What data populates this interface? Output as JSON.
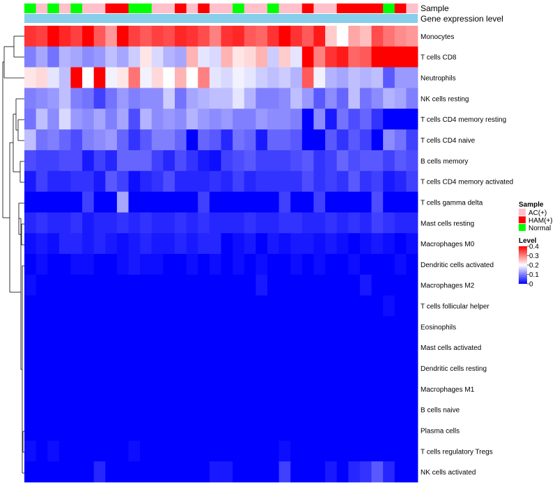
{
  "chart_data": {
    "type": "heatmap",
    "title": "",
    "annotation_tracks": [
      "Sample",
      "Gene expression level"
    ],
    "sample_groups": [
      "N",
      "A",
      "N",
      "A",
      "N",
      "A",
      "A",
      "H",
      "H",
      "N",
      "N",
      "A",
      "A",
      "H",
      "A",
      "H",
      "A",
      "A",
      "N",
      "A",
      "A",
      "N",
      "A",
      "A",
      "H",
      "A",
      "A",
      "H",
      "H",
      "H",
      "H",
      "N",
      "H",
      "A"
    ],
    "row_labels": [
      "Monocytes",
      "T cells CD8",
      "Neutrophils",
      "NK cells resting",
      "T cells CD4 memory resting",
      "T cells CD4 naive",
      "B cells memory",
      "T cells CD4 memory activated",
      "T cells gamma delta",
      "Mast cells resting",
      "Macrophages M0",
      "Dendritic cells activated",
      "Macrophages M2",
      "T cells follicular helper",
      "Eosinophils",
      "Mast cells activated",
      "Dendritic cells resting",
      "Macrophages M1",
      "B cells naive",
      "Plasma cells",
      "T cells regulatory  Tregs",
      "NK cells activated"
    ],
    "values": [
      [
        0.36,
        0.35,
        0.4,
        0.37,
        0.35,
        0.42,
        0.33,
        0.28,
        0.42,
        0.35,
        0.33,
        0.35,
        0.34,
        0.37,
        0.36,
        0.34,
        0.3,
        0.36,
        0.37,
        0.33,
        0.32,
        0.36,
        0.42,
        0.36,
        0.33,
        0.38,
        0.24,
        0.2,
        0.27,
        0.25,
        0.34,
        0.31,
        0.29,
        0.28
      ],
      [
        0.1,
        0.13,
        0.09,
        0.14,
        0.13,
        0.11,
        0.12,
        0.15,
        0.13,
        0.16,
        0.22,
        0.17,
        0.14,
        0.13,
        0.26,
        0.18,
        0.17,
        0.26,
        0.22,
        0.23,
        0.26,
        0.16,
        0.24,
        0.18,
        0.42,
        0.3,
        0.36,
        0.38,
        0.32,
        0.33,
        0.42,
        0.42,
        0.42,
        0.42
      ],
      [
        0.22,
        0.23,
        0.18,
        0.15,
        0.42,
        0.2,
        0.4,
        0.19,
        0.22,
        0.31,
        0.19,
        0.23,
        0.2,
        0.26,
        0.2,
        0.3,
        0.18,
        0.17,
        0.19,
        0.18,
        0.16,
        0.15,
        0.16,
        0.14,
        0.33,
        0.19,
        0.14,
        0.13,
        0.15,
        0.14,
        0.15,
        0.07,
        0.12,
        0.12
      ],
      [
        0.1,
        0.11,
        0.12,
        0.15,
        0.1,
        0.09,
        0.05,
        0.09,
        0.12,
        0.1,
        0.11,
        0.11,
        0.16,
        0.09,
        0.13,
        0.14,
        0.15,
        0.15,
        0.18,
        0.14,
        0.1,
        0.1,
        0.11,
        0.15,
        0.12,
        0.07,
        0.11,
        0.08,
        0.15,
        0.09,
        0.11,
        0.14,
        0.13,
        0.1
      ],
      [
        0.09,
        0.15,
        0.11,
        0.17,
        0.12,
        0.11,
        0.13,
        0.1,
        0.13,
        0.06,
        0.14,
        0.11,
        0.12,
        0.11,
        0.14,
        0.12,
        0.11,
        0.12,
        0.1,
        0.1,
        0.12,
        0.11,
        0.11,
        0.1,
        0.0,
        0.11,
        0.02,
        0.09,
        0.06,
        0.08,
        0.04,
        0.0,
        0.0,
        0.0
      ],
      [
        0.15,
        0.09,
        0.1,
        0.08,
        0.06,
        0.1,
        0.11,
        0.12,
        0.08,
        0.04,
        0.07,
        0.1,
        0.1,
        0.08,
        0.0,
        0.08,
        0.07,
        0.03,
        0.09,
        0.08,
        0.02,
        0.08,
        0.08,
        0.07,
        0.0,
        0.0,
        0.07,
        0.04,
        0.07,
        0.05,
        0.0,
        0.11,
        0.09,
        0.05
      ],
      [
        0.06,
        0.05,
        0.05,
        0.06,
        0.06,
        0.02,
        0.05,
        0.03,
        0.08,
        0.08,
        0.08,
        0.05,
        0.03,
        0.06,
        0.04,
        0.02,
        0.01,
        0.05,
        0.06,
        0.07,
        0.05,
        0.05,
        0.05,
        0.06,
        0.07,
        0.04,
        0.05,
        0.08,
        0.06,
        0.07,
        0.07,
        0.05,
        0.07,
        0.06
      ],
      [
        0.02,
        0.05,
        0.03,
        0.03,
        0.04,
        0.04,
        0.02,
        0.07,
        0.05,
        0.01,
        0.03,
        0.04,
        0.06,
        0.03,
        0.03,
        0.03,
        0.04,
        0.03,
        0.05,
        0.03,
        0.04,
        0.04,
        0.04,
        0.04,
        0.06,
        0.04,
        0.05,
        0.04,
        0.07,
        0.04,
        0.05,
        0.02,
        0.03,
        0.05
      ],
      [
        0.0,
        0.0,
        0.0,
        0.0,
        0.0,
        0.05,
        0.0,
        0.0,
        0.13,
        0.0,
        0.0,
        0.0,
        0.0,
        0.0,
        0.0,
        0.05,
        0.0,
        0.0,
        0.0,
        0.0,
        0.0,
        0.0,
        0.05,
        0.0,
        0.0,
        0.05,
        0.0,
        0.0,
        0.0,
        0.0,
        0.06,
        0.0,
        0.0,
        0.0
      ],
      [
        0.03,
        0.04,
        0.03,
        0.03,
        0.04,
        0.02,
        0.03,
        0.03,
        0.04,
        0.03,
        0.04,
        0.03,
        0.03,
        0.04,
        0.03,
        0.04,
        0.03,
        0.03,
        0.03,
        0.04,
        0.03,
        0.03,
        0.04,
        0.04,
        0.03,
        0.03,
        0.04,
        0.03,
        0.04,
        0.03,
        0.05,
        0.04,
        0.03,
        0.03
      ],
      [
        0.01,
        0.02,
        0.01,
        0.03,
        0.03,
        0.02,
        0.03,
        0.02,
        0.01,
        0.02,
        0.03,
        0.02,
        0.02,
        0.03,
        0.02,
        0.03,
        0.03,
        0.0,
        0.01,
        0.02,
        0.0,
        0.02,
        0.01,
        0.02,
        0.02,
        0.01,
        0.02,
        0.01,
        0.0,
        0.01,
        0.02,
        0.01,
        0.0,
        0.01
      ],
      [
        0.0,
        0.01,
        0.0,
        0.0,
        0.01,
        0.01,
        0.0,
        0.0,
        0.01,
        0.02,
        0.01,
        0.01,
        0.0,
        0.0,
        0.01,
        0.0,
        0.01,
        0.0,
        0.01,
        0.0,
        0.01,
        0.0,
        0.0,
        0.01,
        0.0,
        0.01,
        0.0,
        0.0,
        0.01,
        0.0,
        0.0,
        0.0,
        0.01,
        0.0
      ],
      [
        0.01,
        0.0,
        0.0,
        0.0,
        0.0,
        0.0,
        0.0,
        0.0,
        0.0,
        0.0,
        0.0,
        0.0,
        0.0,
        0.0,
        0.0,
        0.0,
        0.0,
        0.0,
        0.0,
        0.0,
        0.02,
        0.0,
        0.0,
        0.0,
        0.0,
        0.0,
        0.0,
        0.0,
        0.0,
        0.02,
        0.0,
        0.0,
        0.0,
        0.0
      ],
      [
        0.0,
        0.0,
        0.0,
        0.0,
        0.0,
        0.0,
        0.0,
        0.0,
        0.0,
        0.0,
        0.0,
        0.0,
        0.0,
        0.0,
        0.0,
        0.0,
        0.0,
        0.0,
        0.0,
        0.0,
        0.0,
        0.0,
        0.0,
        0.0,
        0.0,
        0.0,
        0.0,
        0.0,
        0.0,
        0.0,
        0.0,
        0.01,
        0.0,
        0.0
      ],
      [
        0.0,
        0.0,
        0.0,
        0.0,
        0.0,
        0.0,
        0.0,
        0.0,
        0.0,
        0.0,
        0.0,
        0.0,
        0.0,
        0.0,
        0.0,
        0.0,
        0.0,
        0.0,
        0.0,
        0.0,
        0.0,
        0.0,
        0.0,
        0.0,
        0.0,
        0.0,
        0.0,
        0.0,
        0.0,
        0.0,
        0.0,
        0.0,
        0.0,
        0.0
      ],
      [
        0.0,
        0.0,
        0.0,
        0.0,
        0.0,
        0.0,
        0.0,
        0.0,
        0.0,
        0.0,
        0.0,
        0.0,
        0.0,
        0.0,
        0.0,
        0.0,
        0.0,
        0.0,
        0.0,
        0.0,
        0.0,
        0.0,
        0.0,
        0.0,
        0.0,
        0.0,
        0.0,
        0.0,
        0.0,
        0.0,
        0.0,
        0.0,
        0.0,
        0.0
      ],
      [
        0.0,
        0.0,
        0.0,
        0.0,
        0.0,
        0.0,
        0.0,
        0.0,
        0.0,
        0.0,
        0.0,
        0.0,
        0.0,
        0.0,
        0.0,
        0.0,
        0.0,
        0.0,
        0.0,
        0.0,
        0.0,
        0.0,
        0.0,
        0.0,
        0.0,
        0.0,
        0.0,
        0.0,
        0.0,
        0.0,
        0.0,
        0.0,
        0.0,
        0.0
      ],
      [
        0.0,
        0.0,
        0.0,
        0.0,
        0.0,
        0.0,
        0.0,
        0.0,
        0.0,
        0.0,
        0.0,
        0.0,
        0.0,
        0.0,
        0.0,
        0.0,
        0.0,
        0.0,
        0.0,
        0.0,
        0.0,
        0.0,
        0.0,
        0.0,
        0.0,
        0.0,
        0.0,
        0.0,
        0.0,
        0.0,
        0.0,
        0.0,
        0.0,
        0.0
      ],
      [
        0.0,
        0.0,
        0.0,
        0.0,
        0.0,
        0.0,
        0.0,
        0.0,
        0.0,
        0.0,
        0.0,
        0.0,
        0.0,
        0.0,
        0.0,
        0.0,
        0.0,
        0.0,
        0.0,
        0.0,
        0.0,
        0.0,
        0.0,
        0.0,
        0.0,
        0.0,
        0.0,
        0.0,
        0.0,
        0.0,
        0.0,
        0.0,
        0.0,
        0.0
      ],
      [
        0.0,
        0.0,
        0.0,
        0.0,
        0.0,
        0.0,
        0.0,
        0.0,
        0.0,
        0.0,
        0.0,
        0.0,
        0.0,
        0.0,
        0.0,
        0.0,
        0.0,
        0.0,
        0.0,
        0.0,
        0.0,
        0.0,
        0.0,
        0.0,
        0.0,
        0.0,
        0.0,
        0.0,
        0.0,
        0.0,
        0.0,
        0.0,
        0.0,
        0.0
      ],
      [
        0.01,
        0.0,
        0.01,
        0.0,
        0.0,
        0.0,
        0.0,
        0.0,
        0.0,
        0.01,
        0.0,
        0.0,
        0.0,
        0.0,
        0.0,
        0.0,
        0.0,
        0.0,
        0.0,
        0.0,
        0.0,
        0.0,
        0.01,
        0.0,
        0.0,
        0.0,
        0.0,
        0.0,
        0.0,
        0.0,
        0.0,
        0.0,
        0.0,
        0.0
      ],
      [
        0.0,
        0.0,
        0.0,
        0.0,
        0.0,
        0.0,
        0.03,
        0.0,
        0.0,
        0.0,
        0.0,
        0.0,
        0.0,
        0.0,
        0.0,
        0.0,
        0.02,
        0.02,
        0.0,
        0.0,
        0.0,
        0.0,
        0.05,
        0.0,
        0.0,
        0.0,
        0.02,
        0.0,
        0.03,
        0.04,
        0.07,
        0.03,
        0.0,
        0.0
      ]
    ],
    "color_scale": {
      "title": "Level",
      "min": 0,
      "max": 0.4,
      "ticks": [
        "0.4",
        "0.3",
        "0.2",
        "0.1",
        "0"
      ],
      "tick_values": [
        0.4,
        0.3,
        0.2,
        0.1,
        0
      ],
      "low": "#0000ff",
      "mid": "#ffffff",
      "high": "#ff0000",
      "mid_value": 0.2
    },
    "legend": {
      "sample_title": "Sample",
      "sample_items": [
        {
          "key": "A",
          "label": "AC(+)",
          "color": "#ffc0cb"
        },
        {
          "key": "H",
          "label": "HAM(+)",
          "color": "#ff0000"
        },
        {
          "key": "N",
          "label": "Normal",
          "color": "#00ff00"
        }
      ],
      "position": "right"
    },
    "expression_track_color": "#87ceeb",
    "dendrogram": "rows",
    "grid": false
  }
}
